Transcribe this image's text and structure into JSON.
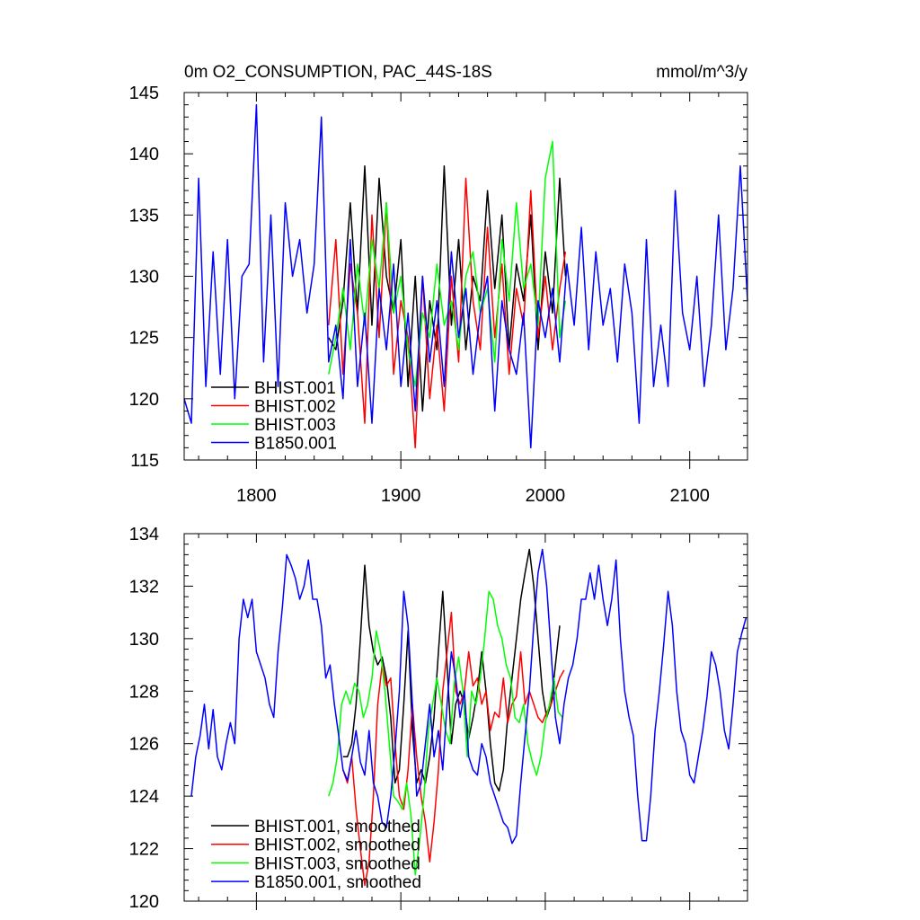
{
  "chart_data": [
    {
      "type": "line",
      "title": "0m O2_CONSUMPTION, PAC_44S-18S",
      "units_label": "mmol/m^3/y",
      "xlabel": "",
      "ylabel": "",
      "xlim": [
        1750,
        2140
      ],
      "ylim": [
        115,
        145
      ],
      "x_ticks": [
        1800,
        1900,
        2000,
        2100
      ],
      "x_tick_labels": [
        "1800",
        "1900",
        "2000",
        "2100"
      ],
      "y_ticks": [
        115,
        120,
        125,
        130,
        135,
        140,
        145
      ],
      "y_tick_labels": [
        "115",
        "120",
        "125",
        "130",
        "135",
        "140",
        "145"
      ],
      "legend_position": "bottom-left",
      "series": [
        {
          "name": "BHIST.001",
          "color": "#000000",
          "x": [
            1850,
            1855,
            1860,
            1865,
            1870,
            1875,
            1880,
            1885,
            1890,
            1895,
            1900,
            1905,
            1910,
            1915,
            1920,
            1925,
            1930,
            1935,
            1940,
            1945,
            1950,
            1955,
            1960,
            1965,
            1970,
            1975,
            1980,
            1985,
            1990,
            1995,
            2000,
            2005,
            2010,
            2014
          ],
          "values": [
            125,
            124,
            128,
            136,
            127,
            139,
            126,
            138,
            130,
            127,
            133,
            121,
            130,
            119,
            128,
            124,
            139,
            126,
            133,
            124,
            130,
            128,
            137,
            129,
            135,
            124,
            131,
            128,
            135,
            124,
            132,
            127,
            138,
            130
          ]
        },
        {
          "name": "BHIST.002",
          "color": "#ff0000",
          "x": [
            1850,
            1855,
            1860,
            1865,
            1870,
            1875,
            1880,
            1885,
            1890,
            1895,
            1900,
            1905,
            1910,
            1915,
            1920,
            1925,
            1930,
            1935,
            1940,
            1945,
            1950,
            1955,
            1960,
            1965,
            1970,
            1975,
            1980,
            1985,
            1990,
            1995,
            2000,
            2005,
            2010,
            2014
          ],
          "values": [
            126,
            133,
            122,
            131,
            127,
            118,
            135,
            125,
            136,
            122,
            128,
            125,
            116,
            130,
            120,
            126,
            119,
            130,
            123,
            138,
            128,
            124,
            134,
            125,
            131,
            122,
            129,
            126,
            137,
            125,
            130,
            124,
            129,
            132
          ]
        },
        {
          "name": "BHIST.003",
          "color": "#00ff00",
          "x": [
            1850,
            1855,
            1860,
            1865,
            1870,
            1875,
            1880,
            1885,
            1890,
            1895,
            1900,
            1905,
            1910,
            1915,
            1920,
            1925,
            1930,
            1935,
            1940,
            1945,
            1950,
            1955,
            1960,
            1965,
            1970,
            1975,
            1980,
            1985,
            1990,
            1995,
            2000,
            2005,
            2010,
            2014
          ],
          "values": [
            122,
            125,
            129,
            124,
            131,
            126,
            133,
            129,
            136,
            127,
            130,
            124,
            121,
            127,
            125,
            131,
            126,
            128,
            124,
            130,
            132,
            127,
            129,
            123,
            133,
            128,
            136,
            129,
            131,
            126,
            138,
            141,
            125,
            128
          ]
        },
        {
          "name": "B1850.001",
          "color": "#0000ff",
          "x": [
            1750,
            1755,
            1760,
            1765,
            1770,
            1775,
            1780,
            1785,
            1790,
            1795,
            1800,
            1805,
            1810,
            1815,
            1820,
            1825,
            1830,
            1835,
            1840,
            1845,
            1850,
            1855,
            1860,
            1865,
            1870,
            1875,
            1880,
            1885,
            1890,
            1895,
            1900,
            1905,
            1910,
            1915,
            1920,
            1925,
            1930,
            1935,
            1940,
            1945,
            1950,
            1955,
            1960,
            1965,
            1970,
            1975,
            1980,
            1985,
            1990,
            1995,
            2000,
            2005,
            2010,
            2015,
            2020,
            2025,
            2030,
            2035,
            2040,
            2045,
            2050,
            2055,
            2060,
            2065,
            2070,
            2075,
            2080,
            2085,
            2090,
            2095,
            2100,
            2105,
            2110,
            2115,
            2120,
            2125,
            2130,
            2135,
            2140
          ],
          "values": [
            120,
            118,
            138,
            121,
            132,
            122,
            133,
            120,
            130,
            131,
            144,
            123,
            135,
            121,
            136,
            130,
            133,
            127,
            131,
            143,
            123,
            126,
            120,
            133,
            121,
            127,
            118,
            129,
            124,
            131,
            121,
            127,
            119,
            130,
            123,
            128,
            121,
            132,
            125,
            129,
            122,
            127,
            130,
            119,
            128,
            124,
            122,
            127,
            116,
            128,
            125,
            129,
            123,
            131,
            126,
            134,
            124,
            132,
            126,
            129,
            123,
            131,
            127,
            118,
            133,
            121,
            126,
            121,
            137,
            127,
            124,
            130,
            121,
            126,
            135,
            124,
            129,
            139,
            128
          ]
        }
      ]
    },
    {
      "type": "line",
      "title": "",
      "xlabel": "",
      "ylabel": "",
      "xlim": [
        1750,
        2140
      ],
      "ylim": [
        120,
        134
      ],
      "x_ticks": [
        1800,
        1900,
        2000,
        2100
      ],
      "y_ticks": [
        120,
        122,
        124,
        126,
        128,
        130,
        132,
        134
      ],
      "y_tick_labels": [
        "120",
        "122",
        "124",
        "126",
        "128",
        "130",
        "132",
        "134"
      ],
      "legend_position": "bottom-left",
      "series": [
        {
          "name": "BHIST.001, smoothed",
          "color": "#000000",
          "x": [
            1860,
            1863,
            1866,
            1869,
            1872,
            1875,
            1878,
            1881,
            1884,
            1887,
            1890,
            1893,
            1896,
            1899,
            1902,
            1905,
            1908,
            1911,
            1914,
            1917,
            1920,
            1923,
            1926,
            1929,
            1932,
            1935,
            1938,
            1941,
            1944,
            1947,
            1950,
            1953,
            1956,
            1959,
            1962,
            1965,
            1968,
            1971,
            1974,
            1977,
            1980,
            1983,
            1986,
            1989,
            1992,
            1995,
            1998,
            2001,
            2004,
            2007,
            2010
          ],
          "values": [
            125.5,
            125.5,
            126,
            127.5,
            130,
            132.8,
            130.5,
            129.5,
            129,
            129.3,
            128.5,
            127,
            124.5,
            125,
            127.5,
            130.3,
            126.5,
            124.5,
            125,
            124.5,
            125.5,
            127,
            129.5,
            131.8,
            129,
            126,
            127.5,
            128,
            127.5,
            126.2,
            127,
            128,
            129.5,
            128,
            126,
            124.5,
            124.2,
            125,
            127,
            128.5,
            130,
            131.5,
            132.5,
            133.4,
            132,
            130,
            128,
            127,
            127.5,
            129,
            130.5
          ]
        },
        {
          "name": "BHIST.002, smoothed",
          "color": "#ff0000",
          "x": [
            1860,
            1863,
            1866,
            1869,
            1872,
            1875,
            1878,
            1881,
            1884,
            1887,
            1890,
            1893,
            1896,
            1899,
            1902,
            1905,
            1908,
            1911,
            1914,
            1917,
            1920,
            1923,
            1926,
            1929,
            1932,
            1935,
            1938,
            1941,
            1944,
            1947,
            1950,
            1953,
            1956,
            1959,
            1962,
            1965,
            1968,
            1971,
            1974,
            1977,
            1980,
            1983,
            1986,
            1989,
            1992,
            1995,
            1998,
            2001,
            2004,
            2007,
            2010,
            2013
          ],
          "values": [
            125,
            124.5,
            125.5,
            123.5,
            122,
            120.6,
            121.5,
            124,
            127.5,
            129,
            128.2,
            128.5,
            126,
            124,
            123.5,
            125,
            127.5,
            125.5,
            124,
            123,
            121.5,
            123,
            125,
            128,
            129.5,
            131,
            128,
            127.5,
            128,
            129.5,
            128.2,
            128.5,
            127.5,
            128,
            126.5,
            127.2,
            127,
            128.5,
            126.8,
            127.5,
            127.8,
            129.5,
            127.5,
            128,
            127.5,
            127,
            126.8,
            127.2,
            127.5,
            128,
            128.5,
            128.8
          ]
        },
        {
          "name": "BHIST.003, smoothed",
          "color": "#00ff00",
          "x": [
            1850,
            1853,
            1856,
            1859,
            1862,
            1865,
            1868,
            1871,
            1874,
            1877,
            1880,
            1883,
            1886,
            1889,
            1892,
            1895,
            1898,
            1901,
            1904,
            1907,
            1910,
            1913,
            1916,
            1919,
            1922,
            1925,
            1928,
            1931,
            1934,
            1937,
            1940,
            1943,
            1946,
            1949,
            1952,
            1955,
            1958,
            1961,
            1964,
            1967,
            1970,
            1973,
            1976,
            1979,
            1982,
            1985,
            1988,
            1991,
            1994,
            1997,
            2000,
            2003,
            2006,
            2009,
            2012
          ],
          "values": [
            124,
            124.5,
            125.5,
            127.5,
            128,
            127.5,
            128.3,
            128,
            127,
            127.5,
            128.5,
            130.3,
            129.5,
            128,
            126,
            124,
            123.8,
            123.5,
            124.5,
            123.3,
            121,
            122.3,
            124,
            126.5,
            127.5,
            128.5,
            127.5,
            126.5,
            126,
            128.3,
            129.3,
            128,
            125.5,
            128,
            127.5,
            128.5,
            130,
            131.8,
            131.5,
            130.5,
            130,
            129,
            128.5,
            127,
            126.8,
            127.5,
            126,
            125.3,
            124.8,
            125.5,
            126.8,
            127.5,
            128.5,
            127.2,
            127
          ]
        },
        {
          "name": "B1850.001, smoothed",
          "color": "#0000ff",
          "x": [
            1755,
            1758,
            1761,
            1764,
            1767,
            1770,
            1773,
            1776,
            1779,
            1782,
            1785,
            1788,
            1791,
            1794,
            1797,
            1800,
            1803,
            1806,
            1809,
            1812,
            1815,
            1818,
            1821,
            1824,
            1827,
            1830,
            1833,
            1836,
            1839,
            1842,
            1845,
            1848,
            1851,
            1854,
            1857,
            1860,
            1863,
            1866,
            1869,
            1872,
            1875,
            1878,
            1881,
            1884,
            1887,
            1890,
            1893,
            1896,
            1899,
            1902,
            1905,
            1908,
            1911,
            1914,
            1917,
            1920,
            1923,
            1926,
            1929,
            1932,
            1935,
            1938,
            1941,
            1944,
            1947,
            1950,
            1953,
            1956,
            1959,
            1962,
            1965,
            1968,
            1971,
            1974,
            1977,
            1980,
            1983,
            1986,
            1989,
            1992,
            1995,
            1998,
            2001,
            2004,
            2007,
            2010,
            2013,
            2016,
            2019,
            2022,
            2025,
            2028,
            2031,
            2034,
            2037,
            2040,
            2043,
            2046,
            2049,
            2052,
            2055,
            2058,
            2061,
            2064,
            2067,
            2070,
            2073,
            2076,
            2079,
            2082,
            2085,
            2088,
            2091,
            2094,
            2097,
            2100,
            2103,
            2106,
            2109,
            2112,
            2115,
            2118,
            2121,
            2124,
            2127,
            2130,
            2133,
            2136,
            2139
          ],
          "values": [
            124,
            125.5,
            126.3,
            127.5,
            125.8,
            127.3,
            125.5,
            125,
            126,
            126.8,
            126,
            130,
            131.5,
            130.8,
            131.5,
            129.5,
            129,
            128.5,
            127.5,
            127,
            129.5,
            131.2,
            133.2,
            132.8,
            132.3,
            131.5,
            132,
            133,
            131.5,
            131.5,
            130.5,
            128.5,
            129,
            127.5,
            126.3,
            125,
            124.6,
            125.5,
            126.5,
            125.3,
            124.8,
            126.5,
            124.5,
            124,
            123,
            122.8,
            124,
            125.8,
            128,
            131.8,
            130.5,
            127.5,
            124,
            124.5,
            126,
            127.5,
            125.5,
            126.5,
            125,
            127.5,
            129.5,
            128.5,
            127,
            128,
            125.5,
            125,
            124.8,
            126,
            125.5,
            124.5,
            124,
            123.5,
            123,
            122.8,
            122.2,
            122.5,
            124.5,
            126.3,
            128,
            130.5,
            132.5,
            133.4,
            132,
            129.5,
            127,
            126,
            127.5,
            128.5,
            129,
            130,
            131.5,
            131.5,
            132.5,
            131.5,
            132.8,
            131.5,
            130.5,
            131.5,
            133,
            130,
            128,
            127,
            126.3,
            124,
            122.3,
            122.3,
            124,
            126.5,
            128,
            129.8,
            131.8,
            130.5,
            128,
            126.5,
            126,
            124.8,
            124.5,
            125.5,
            126.5,
            127.8,
            129.5,
            129,
            128,
            126.5,
            125.8,
            127.5,
            129.5,
            130.2,
            130.8
          ]
        }
      ]
    }
  ]
}
